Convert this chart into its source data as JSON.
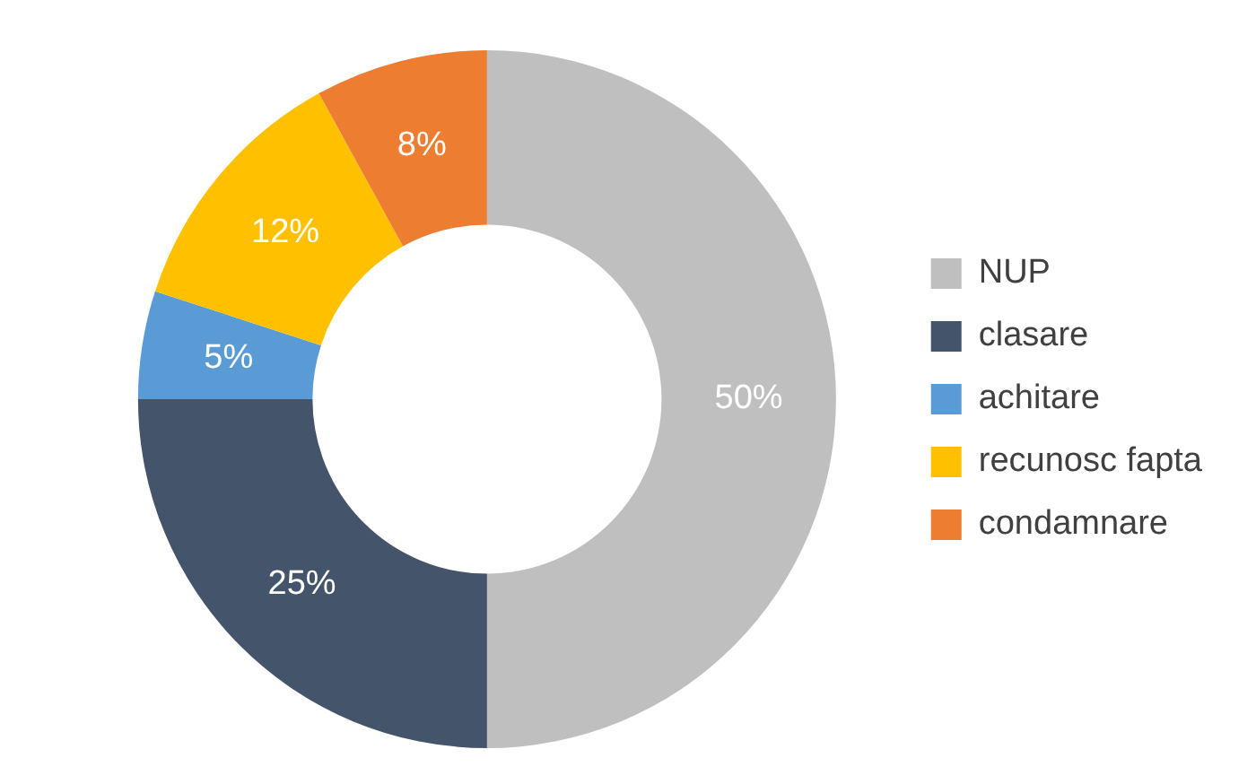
{
  "chart_data": {
    "type": "donut",
    "categories": [
      "NUP",
      "clasare",
      "achitare",
      "recunosc fapta",
      "condamnare"
    ],
    "values": [
      50,
      25,
      5,
      12,
      8
    ],
    "colors": [
      "#bfbfbf",
      "#44546a",
      "#5b9bd5",
      "#ffc000",
      "#ed7d31"
    ],
    "value_labels": [
      "50%",
      "25%",
      "5%",
      "12%",
      "8%"
    ],
    "legend": "right"
  }
}
